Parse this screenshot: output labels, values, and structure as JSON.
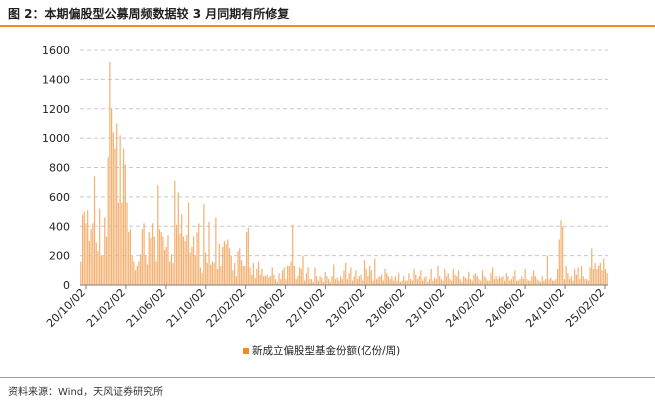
{
  "figure": {
    "title": "图 2：本期偏股型公募周频数据较 3 月同期有所修复",
    "source": "资料来源：Wind，天风证券研究所"
  },
  "colors": {
    "accent": "#f08c1c",
    "bar": "#f4b172",
    "grid": "#c8c8c8"
  },
  "chart_data": {
    "type": "bar",
    "title": "图 2：本期偏股型公募周频数据较 3 月同期有所修复",
    "xlabel": "",
    "ylabel": "",
    "ylim": [
      0,
      1600
    ],
    "yticks": [
      0,
      200,
      400,
      600,
      800,
      1000,
      1200,
      1400,
      1600
    ],
    "x_tick_labels": [
      "20/10/02",
      "21/02/02",
      "21/06/02",
      "21/10/02",
      "22/02/02",
      "22/06/02",
      "22/10/02",
      "23/02/02",
      "23/06/02",
      "23/10/02",
      "24/02/02",
      "24/06/02",
      "24/10/02",
      "25/02/02"
    ],
    "grid": "horizontal dashed",
    "legend_position": "bottom-center",
    "series": [
      {
        "name": "新成立偏股型基金份额(亿份/周)",
        "values": [
          160,
          480,
          500,
          420,
          510,
          300,
          380,
          420,
          740,
          290,
          230,
          520,
          200,
          200,
          460,
          330,
          870,
          1520,
          1200,
          1040,
          930,
          1100,
          560,
          1020,
          560,
          930,
          820,
          560,
          360,
          380,
          200,
          160,
          100,
          130,
          160,
          210,
          380,
          420,
          200,
          140,
          360,
          320,
          420,
          330,
          160,
          680,
          380,
          360,
          330,
          240,
          260,
          340,
          160,
          210,
          150,
          710,
          410,
          630,
          350,
          480,
          330,
          300,
          340,
          560,
          220,
          260,
          330,
          200,
          360,
          420,
          120,
          80,
          550,
          220,
          150,
          430,
          140,
          160,
          150,
          460,
          110,
          280,
          130,
          260,
          300,
          280,
          310,
          250,
          200,
          100,
          150,
          60,
          230,
          250,
          170,
          130,
          130,
          360,
          390,
          120,
          70,
          150,
          50,
          110,
          160,
          70,
          110,
          60,
          60,
          70,
          50,
          60,
          120,
          70,
          40,
          20,
          80,
          40,
          100,
          120,
          40,
          130,
          130,
          160,
          410,
          130,
          40,
          60,
          120,
          110,
          200,
          30,
          80,
          120,
          40,
          40,
          20,
          120,
          60,
          30,
          60,
          50,
          20,
          90,
          60,
          40,
          20,
          60,
          140,
          40,
          50,
          30,
          60,
          40,
          100,
          150,
          40,
          80,
          120,
          30,
          60,
          100,
          40,
          60,
          70,
          30,
          170,
          110,
          60,
          130,
          100,
          30,
          180,
          40,
          50,
          60,
          70,
          30,
          110,
          80,
          60,
          40,
          60,
          30,
          60,
          30,
          80,
          20,
          30,
          60,
          30,
          30,
          80,
          40,
          30,
          110,
          70,
          40,
          60,
          100,
          30,
          50,
          60,
          20,
          40,
          110,
          30,
          50,
          40,
          130,
          60,
          40,
          30,
          110,
          60,
          80,
          40,
          30,
          110,
          70,
          60,
          100,
          40,
          20,
          60,
          50,
          40,
          90,
          40,
          30,
          70,
          80,
          60,
          40,
          30,
          100,
          60,
          50,
          30,
          30,
          80,
          120,
          40,
          60,
          40,
          60,
          50,
          60,
          30,
          80,
          60,
          30,
          40,
          60,
          100,
          30,
          30,
          40,
          60,
          40,
          110,
          40,
          30,
          30,
          60,
          100,
          60,
          40,
          30,
          20,
          60,
          30,
          40,
          200,
          40,
          50,
          30,
          30,
          40,
          110,
          310,
          440,
          400,
          40,
          130,
          80,
          40,
          60,
          30,
          110,
          70,
          120,
          40,
          130,
          60,
          40,
          40,
          30,
          120,
          250,
          110,
          150,
          110,
          130,
          150,
          100,
          180,
          110,
          80
        ]
      }
    ]
  }
}
